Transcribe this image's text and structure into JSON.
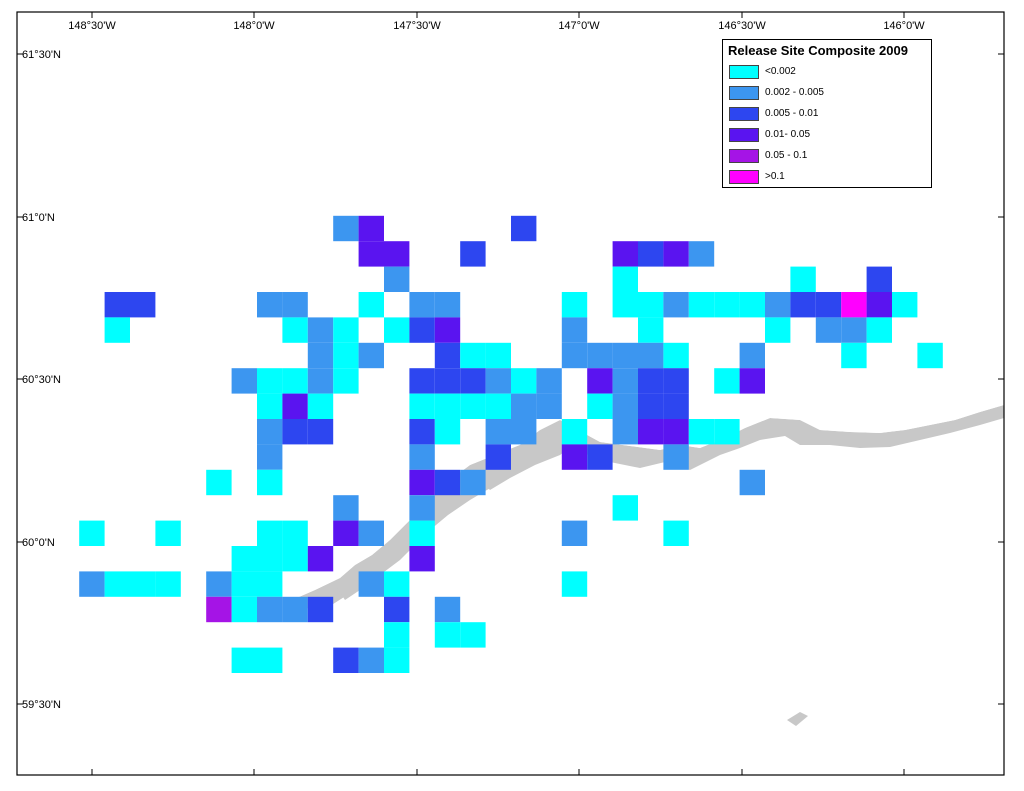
{
  "map": {
    "longitude_labels": [
      "148°30'W",
      "148°0'W",
      "147°30'W",
      "147°0'W",
      "146°30'W",
      "146°0'W"
    ],
    "latitude_labels": [
      "61°30'N",
      "61°0'N",
      "60°30'N",
      "60°0'N",
      "59°30'N"
    ],
    "colors": {
      "land": "#c8c8c8",
      "water": "#ffffff",
      "frame": "#000000"
    },
    "legend": {
      "title": "Release Site Composite 2009",
      "classes": [
        {
          "label": "<0.002",
          "color": "#00ffff"
        },
        {
          "label": "0.002 - 0.005",
          "color": "#3c96f0"
        },
        {
          "label": "0.005 - 0.01",
          "color": "#2d46f0"
        },
        {
          "label": "0.01- 0.05",
          "color": "#5a14f0"
        },
        {
          "label": "0.05 - 0.1",
          "color": "#a514e6"
        },
        {
          "label": ">0.1",
          "color": "#ff00ff"
        }
      ]
    },
    "grid_cells": [
      [
        13,
        7,
        1
      ],
      [
        14,
        7,
        3
      ],
      [
        20,
        7,
        2
      ],
      [
        14,
        8,
        3
      ],
      [
        15,
        8,
        3
      ],
      [
        18,
        8,
        2
      ],
      [
        24,
        8,
        3
      ],
      [
        25,
        8,
        2
      ],
      [
        26,
        8,
        3
      ],
      [
        27,
        8,
        1
      ],
      [
        15,
        9,
        1
      ],
      [
        24,
        9,
        0
      ],
      [
        31,
        9,
        0
      ],
      [
        34,
        9,
        2
      ],
      [
        4,
        10,
        2
      ],
      [
        5,
        10,
        2
      ],
      [
        10,
        10,
        1
      ],
      [
        11,
        10,
        1
      ],
      [
        14,
        10,
        0
      ],
      [
        16,
        10,
        1
      ],
      [
        17,
        10,
        1
      ],
      [
        22,
        10,
        0
      ],
      [
        24,
        10,
        0
      ],
      [
        25,
        10,
        0
      ],
      [
        26,
        10,
        1
      ],
      [
        27,
        10,
        0
      ],
      [
        28,
        10,
        0
      ],
      [
        29,
        10,
        0
      ],
      [
        30,
        10,
        1
      ],
      [
        31,
        10,
        2
      ],
      [
        32,
        10,
        2
      ],
      [
        33,
        10,
        5
      ],
      [
        34,
        10,
        3
      ],
      [
        35,
        10,
        0
      ],
      [
        4,
        11,
        0
      ],
      [
        11,
        11,
        0
      ],
      [
        12,
        11,
        1
      ],
      [
        13,
        11,
        0
      ],
      [
        15,
        11,
        0
      ],
      [
        16,
        11,
        2
      ],
      [
        17,
        11,
        3
      ],
      [
        22,
        11,
        1
      ],
      [
        25,
        11,
        0
      ],
      [
        30,
        11,
        0
      ],
      [
        32,
        11,
        1
      ],
      [
        33,
        11,
        1
      ],
      [
        34,
        11,
        0
      ],
      [
        12,
        12,
        1
      ],
      [
        13,
        12,
        0
      ],
      [
        14,
        12,
        1
      ],
      [
        17,
        12,
        2
      ],
      [
        18,
        12,
        0
      ],
      [
        19,
        12,
        0
      ],
      [
        22,
        12,
        1
      ],
      [
        23,
        12,
        1
      ],
      [
        24,
        12,
        1
      ],
      [
        25,
        12,
        1
      ],
      [
        26,
        12,
        0
      ],
      [
        29,
        12,
        1
      ],
      [
        33,
        12,
        0
      ],
      [
        36,
        12,
        0
      ],
      [
        9,
        13,
        1
      ],
      [
        10,
        13,
        0
      ],
      [
        11,
        13,
        0
      ],
      [
        12,
        13,
        1
      ],
      [
        13,
        13,
        0
      ],
      [
        16,
        13,
        2
      ],
      [
        17,
        13,
        2
      ],
      [
        18,
        13,
        2
      ],
      [
        19,
        13,
        1
      ],
      [
        20,
        13,
        0
      ],
      [
        21,
        13,
        1
      ],
      [
        23,
        13,
        3
      ],
      [
        24,
        13,
        1
      ],
      [
        25,
        13,
        2
      ],
      [
        26,
        13,
        2
      ],
      [
        28,
        13,
        0
      ],
      [
        29,
        13,
        3
      ],
      [
        10,
        14,
        0
      ],
      [
        11,
        14,
        3
      ],
      [
        12,
        14,
        0
      ],
      [
        16,
        14,
        0
      ],
      [
        17,
        14,
        0
      ],
      [
        18,
        14,
        0
      ],
      [
        19,
        14,
        0
      ],
      [
        20,
        14,
        1
      ],
      [
        21,
        14,
        1
      ],
      [
        23,
        14,
        0
      ],
      [
        24,
        14,
        1
      ],
      [
        25,
        14,
        2
      ],
      [
        26,
        14,
        2
      ],
      [
        10,
        15,
        1
      ],
      [
        11,
        15,
        2
      ],
      [
        12,
        15,
        2
      ],
      [
        16,
        15,
        2
      ],
      [
        17,
        15,
        0
      ],
      [
        19,
        15,
        1
      ],
      [
        20,
        15,
        1
      ],
      [
        22,
        15,
        0
      ],
      [
        24,
        15,
        1
      ],
      [
        25,
        15,
        3
      ],
      [
        26,
        15,
        3
      ],
      [
        27,
        15,
        0
      ],
      [
        28,
        15,
        0
      ],
      [
        10,
        16,
        1
      ],
      [
        16,
        16,
        1
      ],
      [
        19,
        16,
        2
      ],
      [
        22,
        16,
        3
      ],
      [
        23,
        16,
        2
      ],
      [
        26,
        16,
        1
      ],
      [
        8,
        17,
        0
      ],
      [
        10,
        17,
        0
      ],
      [
        16,
        17,
        3
      ],
      [
        17,
        17,
        2
      ],
      [
        18,
        17,
        1
      ],
      [
        29,
        17,
        1
      ],
      [
        13,
        18,
        1
      ],
      [
        16,
        18,
        1
      ],
      [
        24,
        18,
        0
      ],
      [
        3,
        19,
        0
      ],
      [
        6,
        19,
        0
      ],
      [
        10,
        19,
        0
      ],
      [
        11,
        19,
        0
      ],
      [
        13,
        19,
        3
      ],
      [
        14,
        19,
        1
      ],
      [
        16,
        19,
        0
      ],
      [
        22,
        19,
        1
      ],
      [
        26,
        19,
        0
      ],
      [
        9,
        20,
        0
      ],
      [
        10,
        20,
        0
      ],
      [
        11,
        20,
        0
      ],
      [
        12,
        20,
        3
      ],
      [
        16,
        20,
        3
      ],
      [
        3,
        21,
        1
      ],
      [
        4,
        21,
        0
      ],
      [
        5,
        21,
        0
      ],
      [
        6,
        21,
        0
      ],
      [
        8,
        21,
        1
      ],
      [
        9,
        21,
        0
      ],
      [
        10,
        21,
        0
      ],
      [
        14,
        21,
        1
      ],
      [
        15,
        21,
        0
      ],
      [
        22,
        21,
        0
      ],
      [
        8,
        22,
        4
      ],
      [
        9,
        22,
        0
      ],
      [
        10,
        22,
        1
      ],
      [
        11,
        22,
        1
      ],
      [
        12,
        22,
        2
      ],
      [
        15,
        22,
        2
      ],
      [
        17,
        22,
        1
      ],
      [
        15,
        23,
        0
      ],
      [
        17,
        23,
        0
      ],
      [
        18,
        23,
        0
      ],
      [
        9,
        24,
        0
      ],
      [
        10,
        24,
        0
      ],
      [
        13,
        24,
        2
      ],
      [
        14,
        24,
        1
      ],
      [
        15,
        24,
        0
      ]
    ]
  }
}
